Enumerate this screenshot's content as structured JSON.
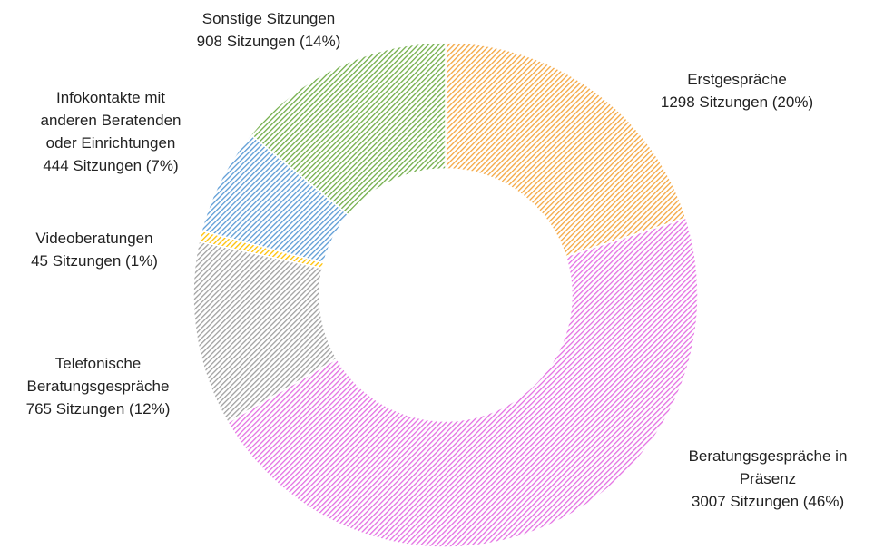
{
  "chart_data": {
    "type": "donut",
    "categories": [
      "Erstgespräche",
      "Beratungsgespräche in Präsenz",
      "Telefonische Beratungsgespräche",
      "Videoberatungen",
      "Infokontakte mit anderen Beratenden oder Einrichtungen",
      "Sonstige Sitzungen"
    ],
    "values": [
      1298,
      3007,
      765,
      45,
      444,
      908
    ],
    "value_labels": [
      "1298 Sitzungen (20%)",
      "3007 Sitzungen (46%)",
      "765 Sitzungen (12%)",
      "45 Sitzungen (1%)",
      "444 Sitzungen (7%)",
      "908 Sitzungen (14%)"
    ],
    "colors": [
      "#f4a640",
      "#e46fe3",
      "#a0a0a0",
      "#ffc000",
      "#5b9bd5",
      "#70ad47"
    ]
  }
}
